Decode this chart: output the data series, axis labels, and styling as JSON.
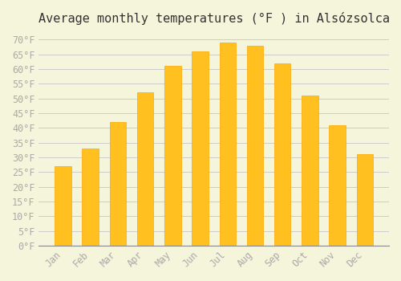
{
  "title": "Average monthly temperatures (°F ) in Alsózsolca",
  "months": [
    "Jan",
    "Feb",
    "Mar",
    "Apr",
    "May",
    "Jun",
    "Jul",
    "Aug",
    "Sep",
    "Oct",
    "Nov",
    "Dec"
  ],
  "values": [
    27,
    33,
    42,
    52,
    61,
    66,
    69,
    68,
    62,
    51,
    41,
    31
  ],
  "bar_color": "#FFC020",
  "bar_edgecolor": "#FFA500",
  "background_color": "#F5F5DC",
  "grid_color": "#CCCCCC",
  "text_color": "#AAAAAA",
  "ylim": [
    0,
    72
  ],
  "yticks": [
    0,
    5,
    10,
    15,
    20,
    25,
    30,
    35,
    40,
    45,
    50,
    55,
    60,
    65,
    70
  ],
  "title_fontsize": 11,
  "tick_fontsize": 8.5
}
